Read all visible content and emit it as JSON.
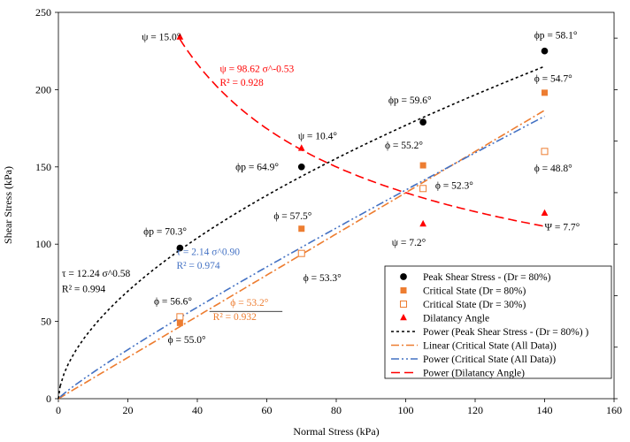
{
  "chart_data": {
    "type": "scatter",
    "xlabel": "Normal Stress (kPa)",
    "ylabel": "Shear Stress (kPa)",
    "xlim": [
      0,
      160
    ],
    "ylim": [
      0,
      250
    ],
    "x_ticks": [
      0,
      20,
      40,
      60,
      80,
      100,
      120,
      140,
      160
    ],
    "y_ticks": [
      0,
      50,
      100,
      150,
      200,
      250
    ],
    "grid": false,
    "legend_position": "bottom-right",
    "series": [
      {
        "name": "Peak Shear Stress - (Dr = 80%)",
        "marker": "circle",
        "color": "#000000",
        "points": [
          {
            "x": 35,
            "y": 97.5
          },
          {
            "x": 70,
            "y": 150
          },
          {
            "x": 105,
            "y": 179
          },
          {
            "x": 140,
            "y": 225
          }
        ]
      },
      {
        "name": "Critical State (Dr = 80%)",
        "marker": "square-filled",
        "color": "#ED7D31",
        "points": [
          {
            "x": 35,
            "y": 49
          },
          {
            "x": 70,
            "y": 110
          },
          {
            "x": 105,
            "y": 151
          },
          {
            "x": 140,
            "y": 198
          }
        ]
      },
      {
        "name": "Critical State (Dr = 30%)",
        "marker": "square-open",
        "color": "#ED7D31",
        "points": [
          {
            "x": 35,
            "y": 53
          },
          {
            "x": 70,
            "y": 94
          },
          {
            "x": 105,
            "y": 136
          },
          {
            "x": 140,
            "y": 160
          }
        ]
      },
      {
        "name": "Dilatancy Angle",
        "marker": "triangle",
        "color": "#FF0000",
        "points": [
          {
            "x": 35,
            "y": 234
          },
          {
            "x": 70,
            "y": 162
          },
          {
            "x": 105,
            "y": 113
          },
          {
            "x": 140,
            "y": 120
          }
        ]
      }
    ],
    "trendlines": [
      {
        "name": "Power (Peak Shear Stress - (Dr = 80%) )",
        "type": "power",
        "a": 12.24,
        "b": 0.58,
        "x_range": [
          0.5,
          140
        ],
        "color": "#000000",
        "dash": "3,3"
      },
      {
        "name": "Linear (Critical State (All Data))",
        "type": "linear",
        "slope": 1.333,
        "intercept": 0,
        "x_range": [
          0,
          140
        ],
        "color": "#ED7D31",
        "dash": "9,3,2,3"
      },
      {
        "name": "Power (Critical State (All Data))",
        "type": "power",
        "a": 2.14,
        "b": 0.9,
        "x_range": [
          0.5,
          140
        ],
        "color": "#4472C4",
        "dash": "9,3,2,3,2,3"
      },
      {
        "name": "Power (Dilatancy Angle)",
        "type": "power",
        "a": 98.62,
        "b": -0.53,
        "x_range": [
          35,
          140
        ],
        "color": "#FF0000",
        "dash": "10,5",
        "y_scale": 15.52
      }
    ],
    "annotations": [
      {
        "text": "ψ = 15.0°",
        "color": "#000000",
        "x": 24,
        "y": 232
      },
      {
        "text": "ψ = 98.62 σ^-0.53",
        "color": "#FF0000",
        "x": 46.5,
        "y": 211.5
      },
      {
        "text": "R² = 0.928",
        "color": "#FF0000",
        "x": 46.5,
        "y": 202.5
      },
      {
        "text": "ϕp = 58.1°",
        "color": "#000000",
        "x": 137,
        "y": 233
      },
      {
        "text": "ϕp = 59.6°",
        "color": "#000000",
        "x": 95,
        "y": 191
      },
      {
        "text": "ψ = 10.4°",
        "color": "#000000",
        "x": 69,
        "y": 168
      },
      {
        "text": "ϕ = 54.7°",
        "color": "#000000",
        "x": 137,
        "y": 205
      },
      {
        "text": "ϕp = 64.9°",
        "color": "#000000",
        "x": 51,
        "y": 148
      },
      {
        "text": "ϕ = 55.2°",
        "color": "#000000",
        "x": 94,
        "y": 162
      },
      {
        "text": "ϕ = 52.3°",
        "color": "#000000",
        "x": 108.5,
        "y": 136
      },
      {
        "text": "ϕ = 48.8°",
        "color": "#000000",
        "x": 137,
        "y": 147
      },
      {
        "text": "ϕ = 57.5°",
        "color": "#000000",
        "x": 62,
        "y": 116
      },
      {
        "text": "ϕp = 70.3°",
        "color": "#000000",
        "x": 24.5,
        "y": 106
      },
      {
        "text": "τ = 2.14 σ^0.90",
        "color": "#4472C4",
        "x": 34,
        "y": 93
      },
      {
        "text": "R² = 0.974",
        "color": "#4472C4",
        "x": 34,
        "y": 84
      },
      {
        "text": "ψ = 7.2°",
        "color": "#000000",
        "x": 96,
        "y": 99
      },
      {
        "text": "Ψ = 7.7°",
        "color": "#000000",
        "x": 140,
        "y": 109
      },
      {
        "text": "τ = 12.24 σ^0.58",
        "color": "#000000",
        "x": 1,
        "y": 79
      },
      {
        "text": "R² = 0.994",
        "color": "#000000",
        "x": 1,
        "y": 69
      },
      {
        "text": "ϕ = 53.3°",
        "color": "#000000",
        "x": 70.5,
        "y": 76
      },
      {
        "text": "ϕ = 56.6°",
        "color": "#000000",
        "x": 27.5,
        "y": 61
      },
      {
        "text": "ϕ = 53.2°",
        "color": "#ED7D31",
        "x": 49.5,
        "y": 60
      },
      {
        "text": "R² = 0.932",
        "color": "#ED7D31",
        "x": 44.5,
        "y": 51
      },
      {
        "text": "ϕ = 55.0°",
        "color": "#000000",
        "x": 31.5,
        "y": 36
      }
    ]
  }
}
